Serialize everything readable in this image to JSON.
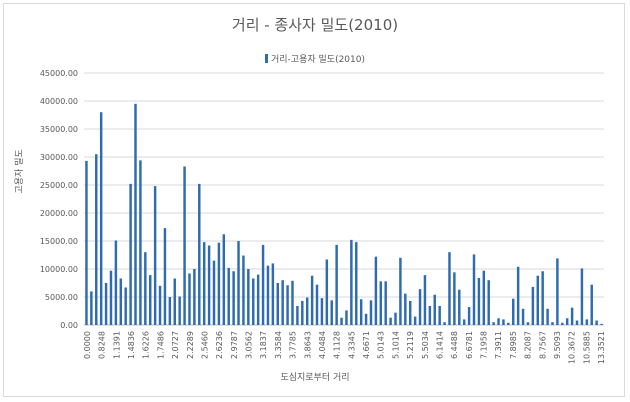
{
  "chart_data": {
    "type": "bar",
    "title": "거리 - 종사자 밀도(2010)",
    "xlabel": "도심지로부터 거리",
    "ylabel": "고용자 밀도",
    "legend": {
      "position": "top",
      "entries": [
        "거리-고용자 밀도(2010)"
      ]
    },
    "ylim": [
      0,
      45000
    ],
    "y_ticks": [
      "0.00",
      "5000.00",
      "10000.00",
      "15000.00",
      "20000.00",
      "25000.00",
      "30000.00",
      "35000.00",
      "40000.00",
      "45000.00"
    ],
    "x_tick_labels": [
      "0.0000",
      "0.8248",
      "1.1391",
      "1.4836",
      "1.6226",
      "1.7486",
      "2.0727",
      "2.2289",
      "2.5460",
      "2.6236",
      "2.9787",
      "3.0562",
      "3.1837",
      "3.3584",
      "3.7785",
      "3.8643",
      "4.0484",
      "4.1128",
      "4.3345",
      "4.6671",
      "5.0143",
      "5.1014",
      "5.2119",
      "5.5034",
      "6.1414",
      "6.4488",
      "6.6781",
      "7.1958",
      "7.3911",
      "7.8985",
      "8.2087",
      "8.7567",
      "9.5093",
      "10.3672",
      "10.5885",
      "13.3521"
    ],
    "grid": true,
    "series": [
      {
        "name": "거리-고용자 밀도(2010)",
        "color": "#2e6bb0",
        "values": [
          29300,
          6000,
          30500,
          38000,
          7500,
          9700,
          15100,
          8300,
          6700,
          25200,
          39500,
          29400,
          13000,
          8900,
          24800,
          7000,
          17300,
          5000,
          8300,
          5100,
          28300,
          9200,
          10000,
          25200,
          14800,
          14200,
          11500,
          14700,
          16200,
          10200,
          9600,
          15000,
          12400,
          10000,
          8300,
          9000,
          14300,
          10600,
          11000,
          7500,
          8000,
          7100,
          7900,
          3400,
          4300,
          4900,
          8800,
          7200,
          4800,
          11700,
          4400,
          14300,
          1300,
          2600,
          15200,
          14800,
          4600,
          2000,
          4400,
          12200,
          7800,
          7800,
          1300,
          2200,
          12000,
          5600,
          4300,
          1500,
          6400,
          8900,
          3400,
          5400,
          3400,
          500,
          13000,
          9400,
          6300,
          1000,
          3200,
          12600,
          8400,
          9700,
          8000,
          500,
          1200,
          1000,
          400,
          4700,
          10400,
          2900,
          500,
          6800,
          8800,
          9600,
          2900,
          500,
          11900,
          400,
          1200,
          3100,
          800,
          10100,
          1000,
          7200,
          800,
          200
        ]
      }
    ]
  }
}
